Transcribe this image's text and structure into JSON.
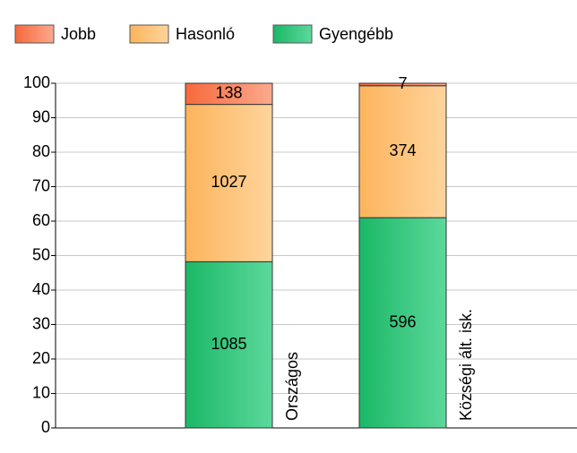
{
  "chart_data": {
    "type": "bar",
    "stacked": "percent",
    "categories": [
      "Országos",
      "Községi ált. isk."
    ],
    "series": [
      {
        "name": "Gyengébb",
        "color": [
          "#1bb866",
          "#5cd89c"
        ],
        "values": [
          1085,
          596
        ]
      },
      {
        "name": "Hasonló",
        "color": [
          "#fcb45c",
          "#fed49c"
        ],
        "values": [
          1027,
          374
        ]
      },
      {
        "name": "Jobb",
        "color": [
          "#f7693b",
          "#fba98d"
        ],
        "values": [
          138,
          7
        ]
      }
    ],
    "legend_order": [
      2,
      1,
      0
    ],
    "ylim": [
      0,
      100
    ],
    "yticks": [
      0,
      10,
      20,
      30,
      40,
      50,
      60,
      70,
      80,
      90,
      100
    ],
    "grid": true
  }
}
